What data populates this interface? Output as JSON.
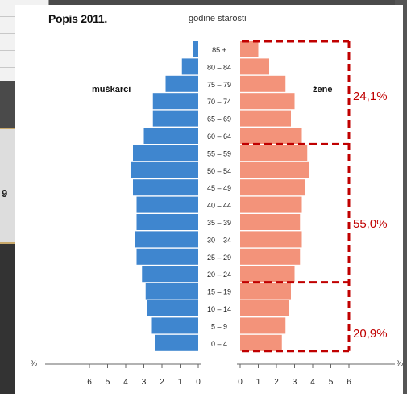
{
  "title": "Popis 2011.",
  "subtitle": "godine starosti",
  "background": {
    "side_value": "9"
  },
  "chart_data": {
    "type": "bar",
    "orientation": "horizontal-pyramid",
    "categories": [
      "0 – 4",
      "5 – 9",
      "10 – 14",
      "15 – 19",
      "20 – 24",
      "25 – 29",
      "30 – 34",
      "35 – 39",
      "40 – 44",
      "45 – 49",
      "50 – 54",
      "55 – 59",
      "60 – 64",
      "65 – 69",
      "70 – 74",
      "75 – 79",
      "80 – 84",
      "85 +"
    ],
    "series": [
      {
        "name": "muškarci",
        "color": "#3f86cf",
        "values": [
          2.4,
          2.6,
          2.8,
          2.9,
          3.1,
          3.4,
          3.5,
          3.4,
          3.4,
          3.6,
          3.7,
          3.6,
          3.0,
          2.5,
          2.5,
          1.8,
          0.9,
          0.3
        ]
      },
      {
        "name": "žene",
        "color": "#f3937a",
        "values": [
          2.3,
          2.5,
          2.7,
          2.8,
          3.0,
          3.3,
          3.4,
          3.3,
          3.4,
          3.6,
          3.8,
          3.7,
          3.4,
          2.8,
          3.0,
          2.5,
          1.6,
          1.0
        ]
      }
    ],
    "x_ticks_left": [
      "6",
      "5",
      "4",
      "3",
      "2",
      "1",
      "0"
    ],
    "x_ticks_right": [
      "0",
      "1",
      "2",
      "3",
      "4",
      "5",
      "6"
    ],
    "x_unit_left": "%",
    "x_unit_right": "%",
    "xlim": [
      0,
      6
    ],
    "groups": [
      {
        "label": "24,1%",
        "from": "60 – 64",
        "to": "85 +"
      },
      {
        "label": "55,0%",
        "from": "20 – 24",
        "to": "55 – 59"
      },
      {
        "label": "20,9%",
        "from": "0 – 4",
        "to": "15 – 19"
      }
    ],
    "group_color": "#c00000",
    "grid": false
  }
}
